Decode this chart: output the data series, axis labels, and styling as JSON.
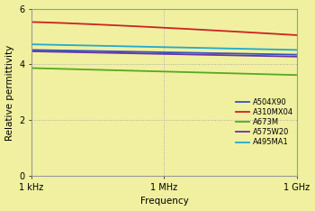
{
  "title": "",
  "xlabel": "Frequency",
  "ylabel": "Relative permittivity",
  "background_color": "#f0f0a0",
  "xlim_log": [
    3,
    9
  ],
  "ylim": [
    0,
    6
  ],
  "yticks": [
    0,
    2,
    4,
    6
  ],
  "xtick_labels": [
    "1 kHz",
    "1 MHz",
    "1 GHz"
  ],
  "xtick_positions": [
    3,
    6,
    9
  ],
  "grid_color": "#aaaaaa",
  "series": [
    {
      "label": "A504X90",
      "color": "#3355bb",
      "start": 4.52,
      "end": 4.35,
      "curve": 1.0
    },
    {
      "label": "A310MX04",
      "color": "#cc2222",
      "start": 5.52,
      "end": 5.05,
      "curve": 1.2
    },
    {
      "label": "A673M",
      "color": "#55aa22",
      "start": 3.87,
      "end": 3.62,
      "curve": 1.0
    },
    {
      "label": "A575W20",
      "color": "#6633aa",
      "start": 4.47,
      "end": 4.28,
      "curve": 1.0
    },
    {
      "label": "A495MA1",
      "color": "#22aacc",
      "start": 4.72,
      "end": 4.52,
      "curve": 1.0
    }
  ],
  "legend_fontsize": 6.0,
  "axis_label_fontsize": 7.5,
  "tick_fontsize": 7.0
}
